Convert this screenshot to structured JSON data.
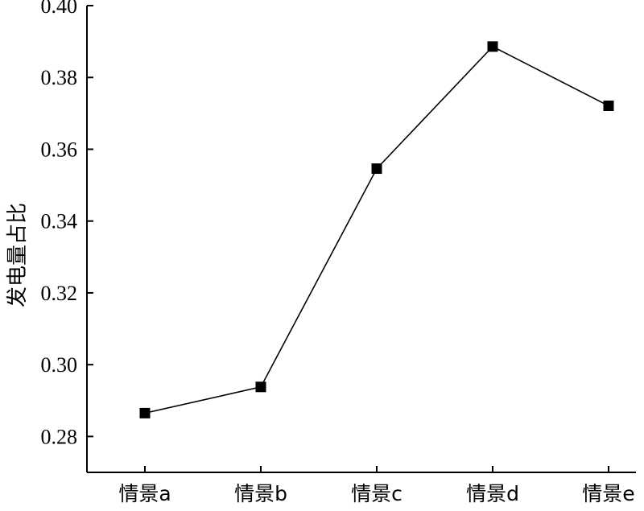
{
  "chart_data": {
    "type": "line",
    "title": "",
    "xlabel": "",
    "ylabel": "发电量占比",
    "categories": [
      "情景a",
      "情景b",
      "情景c",
      "情景d",
      "情景e"
    ],
    "series": [
      {
        "values": [
          0.2865,
          0.2938,
          0.3546,
          0.3886,
          0.3721
        ]
      }
    ],
    "ylim": [
      0.27,
      0.4
    ],
    "yticks": [
      "0.28",
      "0.30",
      "0.32",
      "0.34",
      "0.36",
      "0.38",
      "0.40"
    ],
    "grid": false,
    "marker": "square",
    "color": "#000000"
  }
}
